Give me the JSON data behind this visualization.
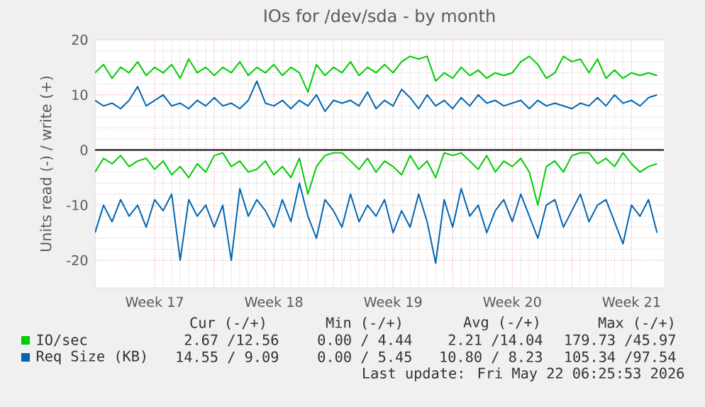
{
  "chart_data": {
    "type": "line",
    "title": "IOs for /dev/sda - by month",
    "ylabel": "Units read (-) / write (+)",
    "x": [
      "2026-04-20T00:00",
      "2026-04-20T12:00",
      "2026-04-21T00:00",
      "2026-04-21T12:00",
      "2026-04-22T00:00",
      "2026-04-22T12:00",
      "2026-04-23T00:00",
      "2026-04-23T12:00",
      "2026-04-24T00:00",
      "2026-04-24T12:00",
      "2026-04-25T00:00",
      "2026-04-25T12:00",
      "2026-04-26T00:00",
      "2026-04-26T12:00",
      "2026-04-27T00:00",
      "2026-04-27T12:00",
      "2026-04-28T00:00",
      "2026-04-28T12:00",
      "2026-04-29T00:00",
      "2026-04-29T12:00",
      "2026-04-30T00:00",
      "2026-04-30T12:00",
      "2026-05-01T00:00",
      "2026-05-01T12:00",
      "2026-05-02T00:00",
      "2026-05-02T12:00",
      "2026-05-03T00:00",
      "2026-05-03T12:00",
      "2026-05-04T00:00",
      "2026-05-04T12:00",
      "2026-05-05T00:00",
      "2026-05-05T12:00",
      "2026-05-06T00:00",
      "2026-05-06T12:00",
      "2026-05-07T00:00",
      "2026-05-07T12:00",
      "2026-05-08T00:00",
      "2026-05-08T12:00",
      "2026-05-09T00:00",
      "2026-05-09T12:00",
      "2026-05-10T00:00",
      "2026-05-10T12:00",
      "2026-05-11T00:00",
      "2026-05-11T12:00",
      "2026-05-12T00:00",
      "2026-05-12T12:00",
      "2026-05-13T00:00",
      "2026-05-13T12:00",
      "2026-05-14T00:00",
      "2026-05-14T12:00",
      "2026-05-15T00:00",
      "2026-05-15T12:00",
      "2026-05-16T00:00",
      "2026-05-16T12:00",
      "2026-05-17T00:00",
      "2026-05-17T12:00",
      "2026-05-18T00:00",
      "2026-05-18T12:00",
      "2026-05-19T00:00",
      "2026-05-19T12:00",
      "2026-05-20T00:00",
      "2026-05-20T12:00",
      "2026-05-21T00:00",
      "2026-05-21T12:00",
      "2026-05-22T00:00",
      "2026-05-22T12:00",
      "2026-05-23T00:00"
    ],
    "xlim": [
      "2026-04-20T00:00",
      "2026-05-23T09:36"
    ],
    "ylim": [
      -25,
      20
    ],
    "xticks": [
      {
        "value": "2026-04-23T12:00",
        "label": "Week 17"
      },
      {
        "value": "2026-04-27T00:00",
        "label": null
      },
      {
        "value": "2026-04-30T12:00",
        "label": "Week 18"
      },
      {
        "value": "2026-05-04T00:00",
        "label": null
      },
      {
        "value": "2026-05-07T12:00",
        "label": "Week 19"
      },
      {
        "value": "2026-05-11T00:00",
        "label": null
      },
      {
        "value": "2026-05-14T12:00",
        "label": "Week 20"
      },
      {
        "value": "2026-05-18T00:00",
        "label": null
      },
      {
        "value": "2026-05-21T12:00",
        "label": "Week 21"
      }
    ],
    "yticks": [
      -20,
      -10,
      0,
      10,
      20
    ],
    "grid": true,
    "legend": "bottom",
    "line_style": "solid",
    "marker": "none",
    "ref_lines": [
      {
        "axis": "y",
        "value": 0,
        "color": "#000000"
      }
    ],
    "series": [
      {
        "name": "IO/sec",
        "color": "#00cc00",
        "values": [
          14,
          15.5,
          13,
          15,
          14,
          16,
          13.5,
          15,
          14,
          15.5,
          13,
          16.5,
          14,
          15,
          13.5,
          15,
          14,
          16,
          13.5,
          15,
          14,
          15.5,
          13.5,
          15,
          14,
          10.5,
          15.5,
          13.5,
          15,
          14,
          16,
          13.5,
          15,
          14,
          15.5,
          14,
          16,
          17,
          16.5,
          17,
          12.5,
          14,
          13,
          15,
          13.5,
          14.5,
          13,
          14,
          13.5,
          14,
          16,
          17,
          15.5,
          13,
          14,
          17,
          16,
          16.5,
          14,
          16.5,
          13,
          14.5,
          13,
          14,
          13.5,
          14,
          13.5
        ]
      },
      {
        "color": "#00cc00",
        "values": [
          -4,
          -1.5,
          -2.5,
          -1,
          -3,
          -2,
          -1.5,
          -3.5,
          -2,
          -4.5,
          -3,
          -5,
          -2.5,
          -4,
          -1,
          -0.5,
          -3,
          -2,
          -4,
          -3.5,
          -2,
          -4.5,
          -3,
          -5,
          -1.5,
          -8,
          -3,
          -1,
          -0.5,
          -0.5,
          -2,
          -3.5,
          -1.5,
          -4,
          -2,
          -3,
          -4.5,
          -1,
          -3.5,
          -2,
          -5,
          -0.5,
          -1,
          -0.5,
          -2,
          -3.5,
          -1,
          -4,
          -2,
          -3,
          -1.5,
          -4,
          -10,
          -3,
          -2,
          -4,
          -1,
          -0.5,
          -0.5,
          -2.5,
          -1.5,
          -3,
          -0.5,
          -2.5,
          -4,
          -3,
          -2.5
        ]
      },
      {
        "name": "Req Size (KB)",
        "color": "#0066b3",
        "values": [
          9,
          8,
          8.5,
          7.5,
          9,
          11.5,
          8,
          9,
          10,
          8,
          8.5,
          7.5,
          9,
          8,
          9.5,
          8,
          8.5,
          7.5,
          9,
          12.5,
          8.5,
          8,
          9,
          7.5,
          9,
          8,
          10,
          7,
          9,
          8.5,
          9,
          8,
          10.5,
          7.5,
          9,
          8,
          11,
          9.5,
          7.5,
          10,
          8,
          9,
          7.5,
          9.5,
          8,
          10,
          8.5,
          9,
          8,
          8.5,
          9,
          7.5,
          9,
          8,
          8.5,
          8,
          7.5,
          8.5,
          8,
          9.5,
          8,
          10,
          8.5,
          9,
          8,
          9.5,
          10
        ]
      },
      {
        "color": "#0066b3",
        "values": [
          -15,
          -10,
          -13,
          -9,
          -12,
          -10,
          -14,
          -9,
          -11,
          -8,
          -20,
          -9,
          -12,
          -10,
          -14,
          -10,
          -20,
          -7,
          -12,
          -9,
          -11,
          -14,
          -9,
          -13,
          -6,
          -12,
          -16,
          -9,
          -11,
          -14,
          -8,
          -13,
          -10,
          -12,
          -9,
          -15,
          -11,
          -14,
          -8,
          -13,
          -20.5,
          -9,
          -14,
          -7,
          -12,
          -10,
          -15,
          -11,
          -9,
          -13,
          -8,
          -12,
          -16,
          -10,
          -9,
          -14,
          -11,
          -8,
          -13,
          -10,
          -9,
          -13,
          -17,
          -10,
          -12,
          -9,
          -15
        ]
      }
    ],
    "annotations": [
      "Cur (-/+)",
      "Min (-/+)",
      "Avg (-/+)",
      "Max (-/+)",
      "2.67 /12.56",
      "0.00 / 4.44",
      "2.21 /14.04",
      "179.73 /45.97",
      "14.55 / 9.09",
      "0.00 / 5.45",
      "10.80 / 8.23",
      "105.34 /97.54",
      "Last update: Fri May 22 06:25:53 2026"
    ]
  }
}
